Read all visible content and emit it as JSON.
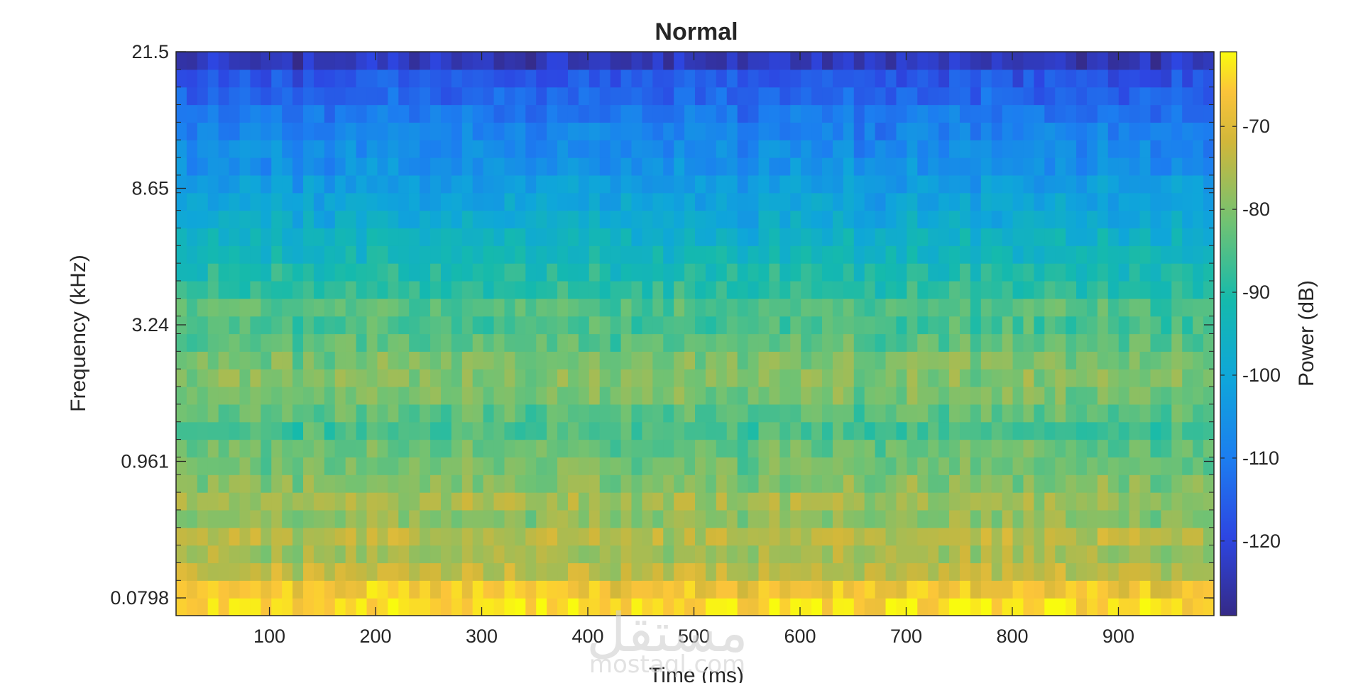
{
  "chart_data": {
    "type": "heatmap",
    "title": "Normal",
    "xlabel": "Time (ms)",
    "ylabel": "Frequency (kHz)",
    "x_ticks": [
      100,
      200,
      300,
      400,
      500,
      600,
      700,
      800,
      900
    ],
    "x_tick_labels": [
      "100",
      "200",
      "300",
      "400",
      "500",
      "600",
      "700",
      "800",
      "900"
    ],
    "xlim": [
      12,
      990
    ],
    "y_scale": "mel",
    "y_tick_labels": [
      "21.5",
      "8.65",
      "3.24",
      "0.961",
      "0.0798"
    ],
    "n_time_frames": 98,
    "n_freq_bands": 32,
    "colorbar": {
      "label": "Power (dB)",
      "ticks": [
        -70,
        -80,
        -90,
        -100,
        -110,
        -120
      ],
      "tick_labels": [
        "-70",
        "-80",
        "-90",
        "-100",
        "-110",
        "-120"
      ],
      "range": [
        -129,
        -61
      ],
      "colormap": "parula"
    },
    "band_mean_power_db": [
      -64,
      -67,
      -74,
      -77,
      -75,
      -79,
      -77,
      -80,
      -82,
      -83,
      -86,
      -84,
      -81,
      -80,
      -81,
      -84,
      -86,
      -85,
      -89,
      -91,
      -94,
      -96,
      -99,
      -101,
      -103,
      -106,
      -107,
      -109,
      -111,
      -114,
      -117,
      -124
    ],
    "watermark": {
      "arabic": "مستقل",
      "latin": "mostaql.com"
    }
  }
}
